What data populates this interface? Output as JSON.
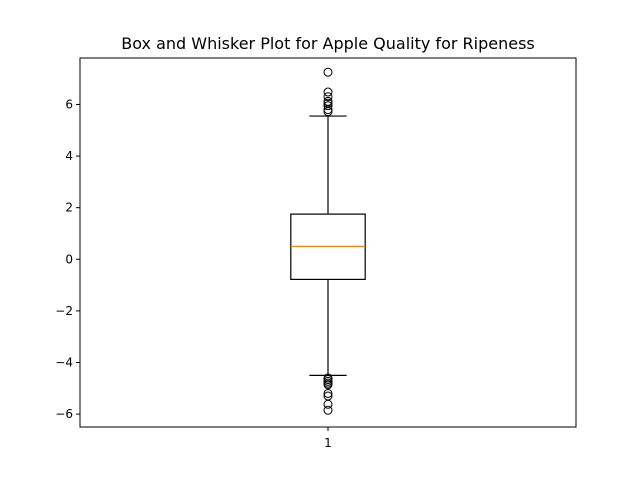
{
  "chart_data": {
    "type": "box",
    "title": "Box and Whisker Plot for Apple Quality for Ripeness",
    "xlabel": "",
    "ylabel": "",
    "categories": [
      "1"
    ],
    "ylim": [
      -6.5,
      7.8
    ],
    "yticks": [
      -6,
      -4,
      -2,
      0,
      2,
      4,
      6
    ],
    "ytick_labels": [
      "−6",
      "−4",
      "−2",
      "0",
      "2",
      "4",
      "6"
    ],
    "grid": false,
    "boxes": [
      {
        "category": "1",
        "whisker_low": -4.5,
        "q1": -0.78,
        "median": 0.5,
        "q3": 1.75,
        "whisker_high": 5.55,
        "outliers_high": [
          5.72,
          5.8,
          5.95,
          6.05,
          6.12,
          6.3,
          6.48,
          7.25
        ],
        "outliers_low": [
          -4.6,
          -4.66,
          -4.73,
          -4.8,
          -4.86,
          -5.2,
          -5.3,
          -5.62,
          -5.85
        ]
      }
    ],
    "colors": {
      "box": "#000000",
      "median": "#ff7f0e",
      "outlier": "#000000"
    }
  }
}
